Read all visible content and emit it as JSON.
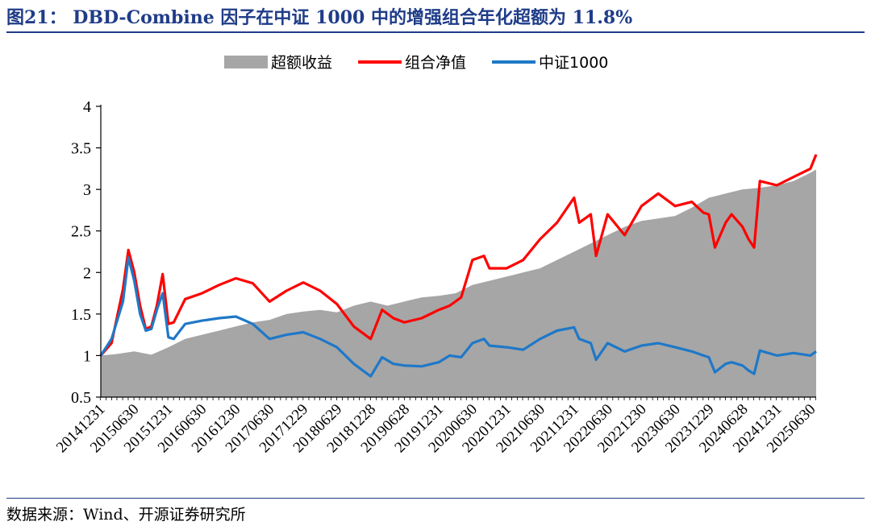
{
  "figure": {
    "title": "图21： DBD-Combine 因子在中证 1000 中的增强组合年化超额为 11.8%",
    "source": "数据来源：Wind、开源证券研究所"
  },
  "colors": {
    "title": "#1f3c88",
    "area": "#a6a6a6",
    "portfolio": "#ff0000",
    "index": "#1f78c8"
  },
  "chart_data": {
    "type": "line",
    "title": "",
    "xlabel": "",
    "ylabel": "",
    "ylim": [
      0.5,
      4
    ],
    "yticks": [
      0.5,
      1,
      1.5,
      2,
      2.5,
      3,
      3.5,
      4
    ],
    "grid": false,
    "legend_position": "top",
    "x_tick_labels": [
      "20141231",
      "20150630",
      "20151231",
      "20160630",
      "20161230",
      "20170630",
      "20171229",
      "20180629",
      "20181228",
      "20190628",
      "20191231",
      "20200630",
      "20201231",
      "20210630",
      "20211231",
      "20220630",
      "20221230",
      "20230630",
      "20231229",
      "20240628",
      "20241231",
      "20250630"
    ],
    "x_start": "2014-12-31",
    "x_end": "2025-07-31",
    "series": [
      {
        "name": "超额收益",
        "kind": "area",
        "points": [
          [
            "2014-12-31",
            1.0
          ],
          [
            "2015-03-31",
            1.02
          ],
          [
            "2015-06-30",
            1.05
          ],
          [
            "2015-09-30",
            1.01
          ],
          [
            "2015-12-31",
            1.1
          ],
          [
            "2016-03-31",
            1.2
          ],
          [
            "2016-06-30",
            1.25
          ],
          [
            "2016-09-30",
            1.3
          ],
          [
            "2016-12-30",
            1.35
          ],
          [
            "2017-03-31",
            1.4
          ],
          [
            "2017-06-30",
            1.43
          ],
          [
            "2017-09-29",
            1.5
          ],
          [
            "2017-12-29",
            1.53
          ],
          [
            "2018-03-30",
            1.55
          ],
          [
            "2018-06-29",
            1.52
          ],
          [
            "2018-09-28",
            1.6
          ],
          [
            "2018-12-28",
            1.65
          ],
          [
            "2019-03-29",
            1.6
          ],
          [
            "2019-06-28",
            1.65
          ],
          [
            "2019-09-30",
            1.7
          ],
          [
            "2019-12-31",
            1.72
          ],
          [
            "2020-03-31",
            1.75
          ],
          [
            "2020-06-30",
            1.85
          ],
          [
            "2020-09-30",
            1.9
          ],
          [
            "2020-12-31",
            1.95
          ],
          [
            "2021-03-31",
            2.0
          ],
          [
            "2021-06-30",
            2.05
          ],
          [
            "2021-09-30",
            2.15
          ],
          [
            "2021-12-31",
            2.25
          ],
          [
            "2022-03-31",
            2.35
          ],
          [
            "2022-06-30",
            2.45
          ],
          [
            "2022-09-30",
            2.55
          ],
          [
            "2022-12-30",
            2.62
          ],
          [
            "2023-03-31",
            2.65
          ],
          [
            "2023-06-30",
            2.68
          ],
          [
            "2023-09-28",
            2.78
          ],
          [
            "2023-12-29",
            2.9
          ],
          [
            "2024-03-29",
            2.95
          ],
          [
            "2024-06-28",
            3.0
          ],
          [
            "2024-09-30",
            3.02
          ],
          [
            "2024-12-31",
            3.05
          ],
          [
            "2025-03-31",
            3.1
          ],
          [
            "2025-06-30",
            3.2
          ],
          [
            "2025-07-31",
            3.24
          ]
        ]
      },
      {
        "name": "组合净值",
        "kind": "line",
        "points": [
          [
            "2014-12-31",
            1.0
          ],
          [
            "2015-02-27",
            1.15
          ],
          [
            "2015-04-30",
            1.8
          ],
          [
            "2015-05-29",
            2.27
          ],
          [
            "2015-06-30",
            2.0
          ],
          [
            "2015-07-31",
            1.6
          ],
          [
            "2015-08-31",
            1.32
          ],
          [
            "2015-09-30",
            1.35
          ],
          [
            "2015-10-30",
            1.6
          ],
          [
            "2015-11-30",
            1.98
          ],
          [
            "2015-12-31",
            1.38
          ],
          [
            "2016-01-29",
            1.4
          ],
          [
            "2016-03-31",
            1.68
          ],
          [
            "2016-06-30",
            1.75
          ],
          [
            "2016-09-30",
            1.85
          ],
          [
            "2016-12-30",
            1.93
          ],
          [
            "2017-03-31",
            1.87
          ],
          [
            "2017-06-30",
            1.65
          ],
          [
            "2017-09-29",
            1.78
          ],
          [
            "2017-12-29",
            1.88
          ],
          [
            "2018-03-30",
            1.78
          ],
          [
            "2018-06-29",
            1.62
          ],
          [
            "2018-09-28",
            1.35
          ],
          [
            "2018-12-28",
            1.2
          ],
          [
            "2019-02-28",
            1.55
          ],
          [
            "2019-04-30",
            1.45
          ],
          [
            "2019-06-28",
            1.4
          ],
          [
            "2019-09-30",
            1.45
          ],
          [
            "2019-12-31",
            1.55
          ],
          [
            "2020-02-28",
            1.6
          ],
          [
            "2020-04-30",
            1.7
          ],
          [
            "2020-06-30",
            2.15
          ],
          [
            "2020-08-31",
            2.2
          ],
          [
            "2020-09-30",
            2.05
          ],
          [
            "2020-12-31",
            2.05
          ],
          [
            "2021-03-31",
            2.15
          ],
          [
            "2021-06-30",
            2.4
          ],
          [
            "2021-09-30",
            2.6
          ],
          [
            "2021-12-31",
            2.9
          ],
          [
            "2022-01-28",
            2.6
          ],
          [
            "2022-03-31",
            2.7
          ],
          [
            "2022-04-29",
            2.2
          ],
          [
            "2022-06-30",
            2.7
          ],
          [
            "2022-09-30",
            2.45
          ],
          [
            "2022-12-30",
            2.8
          ],
          [
            "2023-03-31",
            2.95
          ],
          [
            "2023-06-30",
            2.8
          ],
          [
            "2023-09-28",
            2.85
          ],
          [
            "2023-11-30",
            2.72
          ],
          [
            "2023-12-29",
            2.7
          ],
          [
            "2024-01-31",
            2.3
          ],
          [
            "2024-03-29",
            2.6
          ],
          [
            "2024-04-30",
            2.7
          ],
          [
            "2024-06-28",
            2.55
          ],
          [
            "2024-07-31",
            2.4
          ],
          [
            "2024-08-30",
            2.3
          ],
          [
            "2024-09-30",
            3.1
          ],
          [
            "2024-12-31",
            3.05
          ],
          [
            "2025-03-31",
            3.15
          ],
          [
            "2025-06-30",
            3.25
          ],
          [
            "2025-07-31",
            3.42
          ]
        ]
      },
      {
        "name": "中证1000",
        "kind": "line",
        "points": [
          [
            "2014-12-31",
            1.0
          ],
          [
            "2015-02-27",
            1.2
          ],
          [
            "2015-04-30",
            1.65
          ],
          [
            "2015-05-29",
            2.18
          ],
          [
            "2015-06-30",
            1.9
          ],
          [
            "2015-07-31",
            1.5
          ],
          [
            "2015-08-31",
            1.3
          ],
          [
            "2015-09-30",
            1.32
          ],
          [
            "2015-10-30",
            1.55
          ],
          [
            "2015-11-30",
            1.75
          ],
          [
            "2015-12-31",
            1.22
          ],
          [
            "2016-01-29",
            1.2
          ],
          [
            "2016-03-31",
            1.38
          ],
          [
            "2016-06-30",
            1.42
          ],
          [
            "2016-09-30",
            1.45
          ],
          [
            "2016-12-30",
            1.47
          ],
          [
            "2017-03-31",
            1.38
          ],
          [
            "2017-06-30",
            1.2
          ],
          [
            "2017-09-29",
            1.25
          ],
          [
            "2017-12-29",
            1.28
          ],
          [
            "2018-03-30",
            1.2
          ],
          [
            "2018-06-29",
            1.1
          ],
          [
            "2018-09-28",
            0.9
          ],
          [
            "2018-12-28",
            0.75
          ],
          [
            "2019-02-28",
            0.98
          ],
          [
            "2019-04-30",
            0.9
          ],
          [
            "2019-06-28",
            0.88
          ],
          [
            "2019-09-30",
            0.87
          ],
          [
            "2019-12-31",
            0.92
          ],
          [
            "2020-02-28",
            1.0
          ],
          [
            "2020-04-30",
            0.98
          ],
          [
            "2020-06-30",
            1.15
          ],
          [
            "2020-08-31",
            1.2
          ],
          [
            "2020-09-30",
            1.12
          ],
          [
            "2020-12-31",
            1.1
          ],
          [
            "2021-03-31",
            1.07
          ],
          [
            "2021-06-30",
            1.2
          ],
          [
            "2021-09-30",
            1.3
          ],
          [
            "2021-12-31",
            1.34
          ],
          [
            "2022-01-28",
            1.2
          ],
          [
            "2022-03-31",
            1.15
          ],
          [
            "2022-04-29",
            0.95
          ],
          [
            "2022-06-30",
            1.15
          ],
          [
            "2022-09-30",
            1.05
          ],
          [
            "2022-12-30",
            1.12
          ],
          [
            "2023-03-31",
            1.15
          ],
          [
            "2023-06-30",
            1.1
          ],
          [
            "2023-09-28",
            1.05
          ],
          [
            "2023-11-30",
            1.0
          ],
          [
            "2023-12-29",
            0.98
          ],
          [
            "2024-01-31",
            0.8
          ],
          [
            "2024-03-29",
            0.9
          ],
          [
            "2024-04-30",
            0.92
          ],
          [
            "2024-06-28",
            0.88
          ],
          [
            "2024-07-31",
            0.82
          ],
          [
            "2024-08-30",
            0.78
          ],
          [
            "2024-09-30",
            1.06
          ],
          [
            "2024-12-31",
            1.0
          ],
          [
            "2025-03-31",
            1.03
          ],
          [
            "2025-06-30",
            1.0
          ],
          [
            "2025-07-31",
            1.05
          ]
        ]
      }
    ]
  }
}
